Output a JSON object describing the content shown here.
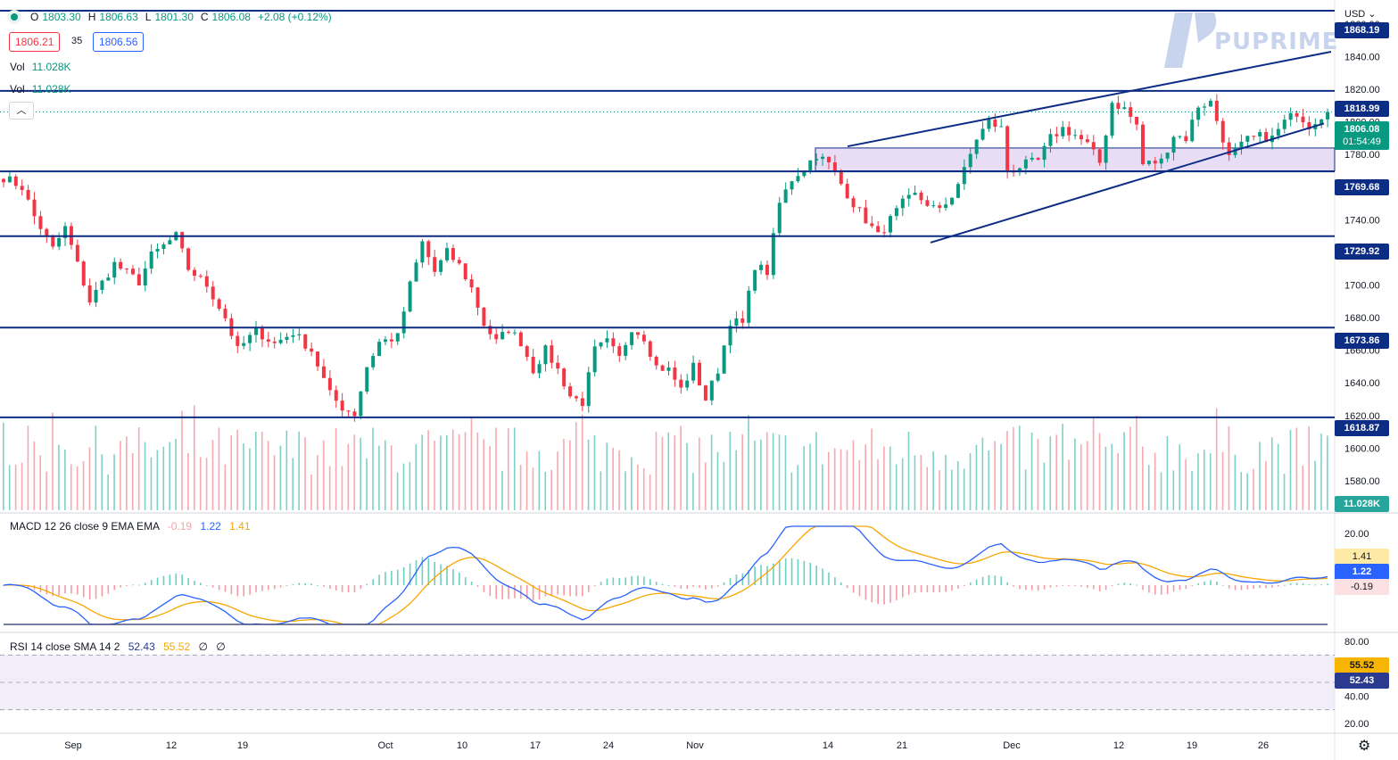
{
  "header": {
    "open_label": "O",
    "open": "1803.30",
    "high_label": "H",
    "high": "1806.63",
    "low_label": "L",
    "low": "1801.30",
    "close_label": "C",
    "close": "1806.08",
    "change": "+2.08 (+0.12%)",
    "bid": "1806.21",
    "spread": "35",
    "ask": "1806.56",
    "vol_label": "Vol",
    "vol_value": "11.028K",
    "collapse_icon": "chevron-up-icon"
  },
  "currency": "USD",
  "logo_text": "PUPRIME",
  "colors": {
    "up": "#089981",
    "down": "#f23645",
    "line": "#0d2d85",
    "zone": "#e7d9f4",
    "macd": "#2962ff",
    "signal": "#f7a600",
    "rsi": "#2a3b8f"
  },
  "chart_data": [
    {
      "type": "candlestick",
      "instrument_currency": "USD",
      "x_ticks": [
        "Sep",
        "12",
        "19",
        "Oct",
        "10",
        "17",
        "24",
        "Nov",
        "14",
        "21",
        "Dec",
        "12",
        "19",
        "26"
      ],
      "y_ticks": [
        "1860.00",
        "1840.00",
        "1820.00",
        "1800.00",
        "1780.00",
        "1760.00",
        "1740.00",
        "1720.00",
        "1700.00",
        "1680.00",
        "1660.00",
        "1640.00",
        "1620.00",
        "1600.00",
        "1580.00"
      ],
      "ylim": [
        1563,
        1872
      ],
      "horizontal_levels": [
        "1868.19",
        "1818.99",
        "1769.68",
        "1729.92",
        "1673.86",
        "1618.87"
      ],
      "zone": {
        "top": 1784,
        "bottom": 1770
      },
      "close_points": [
        [
          0,
          1766
        ],
        [
          3,
          1760
        ],
        [
          5,
          1742
        ],
        [
          8,
          1722
        ],
        [
          10,
          1735
        ],
        [
          14,
          1690
        ],
        [
          18,
          1713
        ],
        [
          22,
          1702
        ],
        [
          24,
          1718
        ],
        [
          28,
          1730
        ],
        [
          30,
          1710
        ],
        [
          33,
          1700
        ],
        [
          36,
          1680
        ],
        [
          38,
          1660
        ],
        [
          41,
          1672
        ],
        [
          44,
          1664
        ],
        [
          47,
          1671
        ],
        [
          50,
          1660
        ],
        [
          53,
          1633
        ],
        [
          55,
          1625
        ],
        [
          57,
          1621
        ],
        [
          59,
          1650
        ],
        [
          61,
          1665
        ],
        [
          64,
          1668
        ],
        [
          66,
          1700
        ],
        [
          68,
          1726
        ],
        [
          70,
          1708
        ],
        [
          72,
          1720
        ],
        [
          74,
          1712
        ],
        [
          76,
          1698
        ],
        [
          78,
          1676
        ],
        [
          80,
          1665
        ],
        [
          82,
          1673
        ],
        [
          84,
          1665
        ],
        [
          86,
          1648
        ],
        [
          88,
          1660
        ],
        [
          90,
          1648
        ],
        [
          92,
          1632
        ],
        [
          94,
          1628
        ],
        [
          96,
          1660
        ],
        [
          98,
          1665
        ],
        [
          100,
          1655
        ],
        [
          102,
          1674
        ],
        [
          104,
          1668
        ],
        [
          106,
          1650
        ],
        [
          108,
          1648
        ],
        [
          110,
          1636
        ],
        [
          112,
          1650
        ],
        [
          114,
          1630
        ],
        [
          116,
          1648
        ],
        [
          118,
          1678
        ],
        [
          120,
          1676
        ],
        [
          122,
          1712
        ],
        [
          124,
          1708
        ],
        [
          126,
          1750
        ],
        [
          128,
          1765
        ],
        [
          130,
          1772
        ],
        [
          132,
          1780
        ],
        [
          134,
          1774
        ],
        [
          136,
          1762
        ],
        [
          138,
          1750
        ],
        [
          140,
          1740
        ],
        [
          142,
          1730
        ],
        [
          144,
          1740
        ],
        [
          146,
          1750
        ],
        [
          148,
          1755
        ],
        [
          150,
          1750
        ],
        [
          152,
          1745
        ],
        [
          154,
          1755
        ],
        [
          156,
          1770
        ],
        [
          158,
          1790
        ],
        [
          160,
          1800
        ],
        [
          162,
          1796
        ],
        [
          163,
          1770
        ],
        [
          166,
          1774
        ],
        [
          168,
          1776
        ],
        [
          170,
          1790
        ],
        [
          172,
          1796
        ],
        [
          174,
          1792
        ],
        [
          176,
          1786
        ],
        [
          178,
          1775
        ],
        [
          180,
          1812
        ],
        [
          182,
          1808
        ],
        [
          184,
          1798
        ],
        [
          185,
          1774
        ],
        [
          188,
          1776
        ],
        [
          190,
          1792
        ],
        [
          192,
          1790
        ],
        [
          194,
          1810
        ],
        [
          196,
          1812
        ],
        [
          198,
          1790
        ],
        [
          199,
          1778
        ],
        [
          202,
          1789
        ],
        [
          204,
          1791
        ],
        [
          206,
          1790
        ],
        [
          208,
          1800
        ],
        [
          210,
          1806
        ],
        [
          212,
          1798
        ],
        [
          214,
          1804
        ],
        [
          215,
          1806
        ]
      ],
      "volume_last": "11.028K"
    },
    {
      "type": "line",
      "title": "MACD 12 26 close 9 EMA EMA",
      "series": [
        {
          "name": "histogram",
          "last": "-0.19"
        },
        {
          "name": "macd",
          "last": "1.22"
        },
        {
          "name": "signal",
          "last": "1.41"
        }
      ],
      "y_ticks": [
        "20.00"
      ]
    },
    {
      "type": "line",
      "title": "RSI 14 close SMA 14 2",
      "series": [
        {
          "name": "rsi",
          "last": "52.43"
        },
        {
          "name": "sma",
          "last": "55.52"
        }
      ],
      "flags": [
        "∅",
        "∅"
      ],
      "y_ticks": [
        "80.00",
        "60.00",
        "40.00",
        "20.00"
      ],
      "bands": [
        70,
        30
      ]
    }
  ],
  "last_price_tag": "1806.08",
  "countdown": "01:54:49",
  "macd_tags": {
    "signal": "1.41",
    "macd": "1.22",
    "hist": "-0.19"
  },
  "rsi_tags": {
    "sma": "55.52",
    "rsi": "52.43"
  },
  "settings_icon": "gear-icon"
}
